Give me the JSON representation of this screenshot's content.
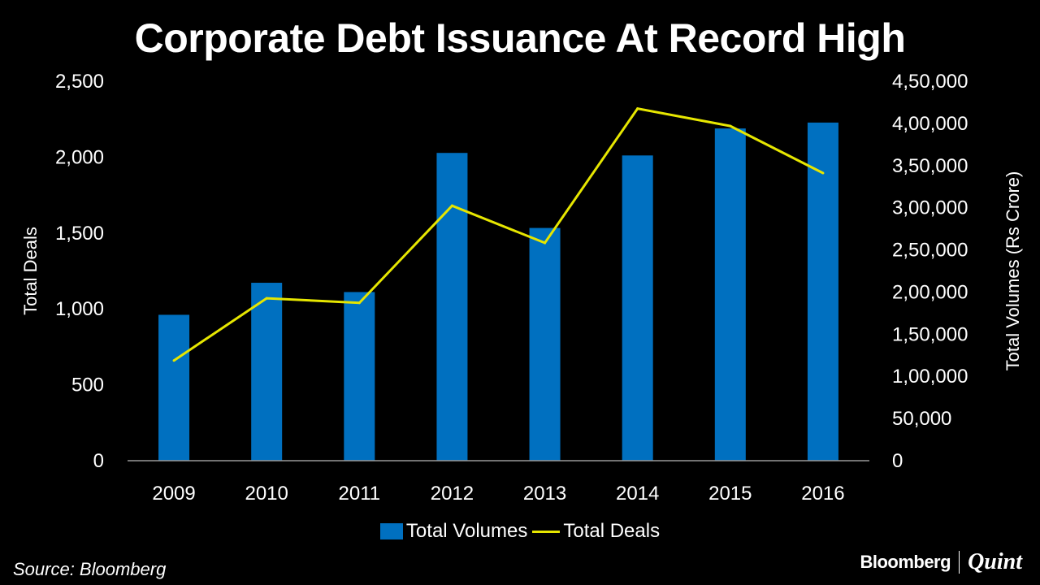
{
  "chart_data": {
    "type": "bar+line",
    "title": "Corporate Debt Issuance At Record High",
    "categories": [
      "2009",
      "2010",
      "2011",
      "2012",
      "2013",
      "2014",
      "2015",
      "2016"
    ],
    "series": [
      {
        "name": "Total Volumes",
        "type": "bar",
        "axis": "right",
        "color": "#0070c0",
        "values": [
          173000,
          211000,
          200000,
          365000,
          276000,
          362000,
          394000,
          401000
        ]
      },
      {
        "name": "Total Deals",
        "type": "line",
        "axis": "left",
        "color": "#e6e600",
        "values": [
          660,
          1070,
          1040,
          1680,
          1435,
          2320,
          2205,
          1895
        ]
      }
    ],
    "ylabel_left": "Total Deals",
    "ylabel_right": "Total Volumes (Rs Crore)",
    "ylim_left": [
      0,
      2500
    ],
    "ylim_right": [
      0,
      450000
    ],
    "yticks_left": [
      "0",
      "500",
      "1,000",
      "1,500",
      "2,000",
      "2,500"
    ],
    "yticks_right": [
      "0",
      "50,000",
      "1,00,000",
      "1,50,000",
      "2,00,000",
      "2,50,000",
      "3,00,000",
      "3,50,000",
      "4,00,000",
      "4,50,000"
    ],
    "grid": false,
    "legend": "bottom"
  },
  "source": "Source: Bloomberg",
  "logo": {
    "left": "Bloomberg",
    "right": "Quint"
  }
}
